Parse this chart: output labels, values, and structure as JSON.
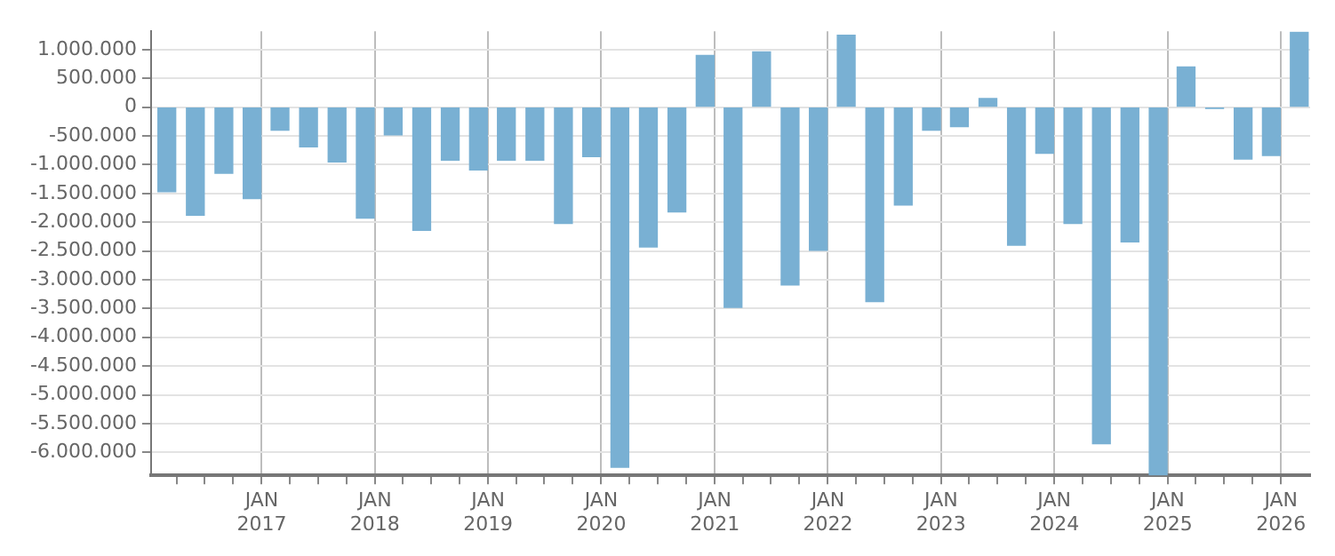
{
  "chart_data": {
    "type": "bar",
    "color": "#79b0d3",
    "x": [
      "2016-03",
      "2016-06",
      "2016-09",
      "2016-12",
      "2017-03",
      "2017-06",
      "2017-09",
      "2017-12",
      "2018-03",
      "2018-06",
      "2018-09",
      "2018-12",
      "2019-03",
      "2019-06",
      "2019-09",
      "2019-12",
      "2020-03",
      "2020-06",
      "2020-09",
      "2020-12",
      "2021-03",
      "2021-06",
      "2021-09",
      "2021-12",
      "2022-03",
      "2022-06",
      "2022-09",
      "2022-12",
      "2023-03",
      "2023-06",
      "2023-09",
      "2023-12",
      "2024-03",
      "2024-06",
      "2024-09",
      "2024-12",
      "2025-03",
      "2025-06",
      "2025-09",
      "2025-12",
      "2026-03"
    ],
    "values": [
      -1470000,
      -1880000,
      -1150000,
      -1590000,
      -400000,
      -690000,
      -950000,
      -1930000,
      -480000,
      -2140000,
      -920000,
      -1090000,
      -920000,
      -920000,
      -2020000,
      -860000,
      -6260000,
      -2430000,
      -1820000,
      900000,
      -3480000,
      960000,
      -3090000,
      -2490000,
      1250000,
      -3380000,
      -1700000,
      -400000,
      -340000,
      150000,
      -2400000,
      -800000,
      -2020000,
      -5850000,
      -2340000,
      -6400000,
      700000,
      -20000,
      -900000,
      -840000,
      1300000
    ],
    "xlim": [
      "2016-01-10",
      "2026-04-05"
    ],
    "xticks": [
      {
        "value": "2016-04",
        "label": null
      },
      {
        "value": "2016-07",
        "label": null
      },
      {
        "value": "2016-10",
        "label": null
      },
      {
        "value": "2017-01",
        "label": "JAN 2017"
      },
      {
        "value": "2017-04",
        "label": null
      },
      {
        "value": "2017-07",
        "label": null
      },
      {
        "value": "2017-10",
        "label": null
      },
      {
        "value": "2018-01",
        "label": "JAN 2018"
      },
      {
        "value": "2018-04",
        "label": null
      },
      {
        "value": "2018-07",
        "label": null
      },
      {
        "value": "2018-10",
        "label": null
      },
      {
        "value": "2019-01",
        "label": "JAN 2019"
      },
      {
        "value": "2019-04",
        "label": null
      },
      {
        "value": "2019-07",
        "label": null
      },
      {
        "value": "2019-10",
        "label": null
      },
      {
        "value": "2020-01",
        "label": "JAN 2020"
      },
      {
        "value": "2020-04",
        "label": null
      },
      {
        "value": "2020-07",
        "label": null
      },
      {
        "value": "2020-10",
        "label": null
      },
      {
        "value": "2021-01",
        "label": "JAN 2021"
      },
      {
        "value": "2021-04",
        "label": null
      },
      {
        "value": "2021-07",
        "label": null
      },
      {
        "value": "2021-10",
        "label": null
      },
      {
        "value": "2022-01",
        "label": "JAN 2022"
      },
      {
        "value": "2022-04",
        "label": null
      },
      {
        "value": "2022-07",
        "label": null
      },
      {
        "value": "2022-10",
        "label": null
      },
      {
        "value": "2023-01",
        "label": "JAN 2023"
      },
      {
        "value": "2023-04",
        "label": null
      },
      {
        "value": "2023-07",
        "label": null
      },
      {
        "value": "2023-10",
        "label": null
      },
      {
        "value": "2024-01",
        "label": "JAN 2024"
      },
      {
        "value": "2024-04",
        "label": null
      },
      {
        "value": "2024-07",
        "label": null
      },
      {
        "value": "2024-10",
        "label": null
      },
      {
        "value": "2025-01",
        "label": "JAN 2025"
      },
      {
        "value": "2025-04",
        "label": null
      },
      {
        "value": "2025-07",
        "label": null
      },
      {
        "value": "2025-10",
        "label": null
      },
      {
        "value": "2026-01",
        "label": "JAN 2026"
      }
    ],
    "ylim": [
      -6400000,
      1320000
    ],
    "yticks": [
      {
        "value": 1000000,
        "label": "1.000.000"
      },
      {
        "value": 500000,
        "label": "500.000"
      },
      0,
      {
        "value": -500000,
        "label": "-500.000"
      },
      {
        "value": -1000000,
        "label": "-1.000.000"
      },
      {
        "value": -1500000,
        "label": "-1.500.000"
      },
      {
        "value": -2000000,
        "label": "-2.000.000"
      },
      {
        "value": -2500000,
        "label": "-2.500.000"
      },
      {
        "value": -3000000,
        "label": "-3.000.000"
      },
      {
        "value": -3500000,
        "label": "-3.500.000"
      },
      {
        "value": -4000000,
        "label": "-4.000.000"
      },
      {
        "value": -4500000,
        "label": "-4.500.000"
      },
      {
        "value": -5000000,
        "label": "-5.000.000"
      },
      {
        "value": -5500000,
        "label": "-5.500.000"
      },
      {
        "value": -6000000,
        "label": "-6.000.000"
      }
    ],
    "grid": true,
    "legend": false
  }
}
